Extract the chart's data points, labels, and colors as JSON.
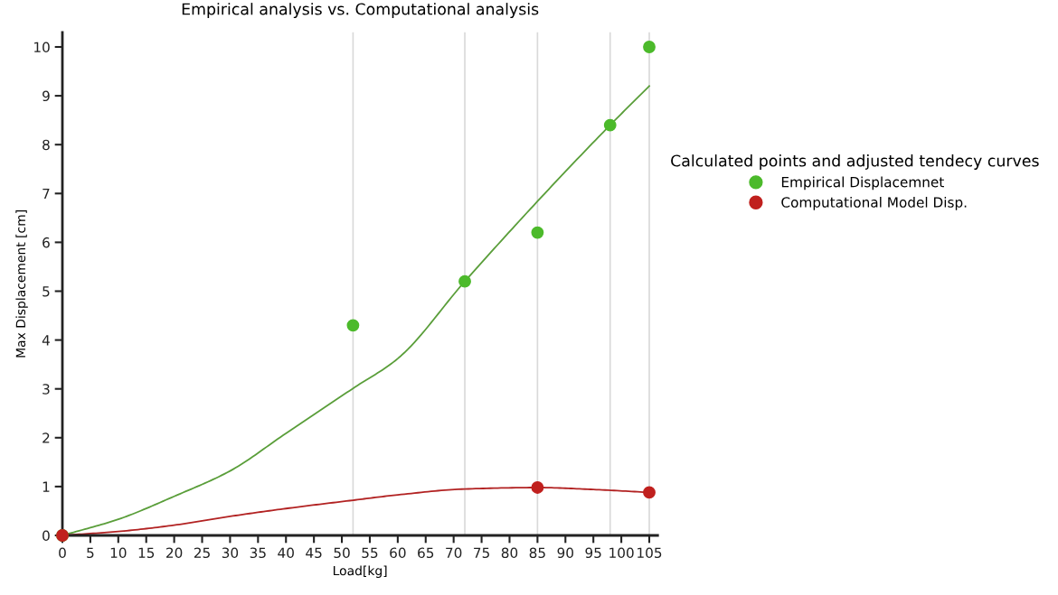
{
  "chart_data": {
    "type": "scatter",
    "title": "Empirical analysis vs. Computational analysis",
    "xlabel": "Load[kg]",
    "ylabel": "Max Displacement [cm]",
    "legend_title": "Calculated points and adjusted tendecy curves",
    "series": [
      {
        "type": "line",
        "color": "#5a9e3a",
        "x": [
          0,
          10,
          20,
          30,
          40,
          52,
          60,
          72,
          85,
          98,
          105
        ],
        "values": [
          0,
          0.33,
          0.8,
          1.32,
          2.09,
          3.01,
          3.62,
          5.2,
          6.84,
          8.4,
          9.2
        ],
        "marker": "none"
      },
      {
        "type": "line",
        "color": "#b22222",
        "x": [
          0,
          10,
          20,
          30,
          40,
          52,
          60,
          72,
          85,
          95,
          105
        ],
        "values": [
          0,
          0.08,
          0.21,
          0.39,
          0.55,
          0.72,
          0.83,
          0.95,
          0.98,
          0.94,
          0.88
        ],
        "marker": "none"
      },
      {
        "name": "Empirical Displacemnet",
        "color": "#4cba2b",
        "x": [
          0,
          52,
          72,
          85,
          98,
          105
        ],
        "values": [
          0,
          4.3,
          5.2,
          6.2,
          8.4,
          10
        ],
        "marker": "circle"
      },
      {
        "name": "Computational Model Disp.",
        "color": "#c0201e",
        "x": [
          0,
          85,
          105
        ],
        "values": [
          0,
          0.98,
          0.88
        ],
        "marker": "circle"
      }
    ],
    "ref_lines": [
      {
        "axis": "x",
        "value": 52,
        "color": "#d9d9d9"
      },
      {
        "axis": "x",
        "value": 72,
        "color": "#d9d9d9"
      },
      {
        "axis": "x",
        "value": 85,
        "color": "#d9d9d9"
      },
      {
        "axis": "x",
        "value": 98,
        "color": "#d9d9d9"
      },
      {
        "axis": "x",
        "value": 105,
        "color": "#d9d9d9"
      }
    ],
    "xlim": [
      0,
      106.5
    ],
    "xticks": [
      0,
      5,
      10,
      15,
      20,
      25,
      30,
      35,
      40,
      45,
      50,
      55,
      60,
      65,
      70,
      75,
      80,
      85,
      90,
      95,
      100,
      105
    ],
    "ylim": [
      0,
      10.3
    ],
    "yticks": [
      0,
      1,
      2,
      3,
      4,
      5,
      6,
      7,
      8,
      9,
      10
    ],
    "grid": false,
    "legend": "right"
  }
}
